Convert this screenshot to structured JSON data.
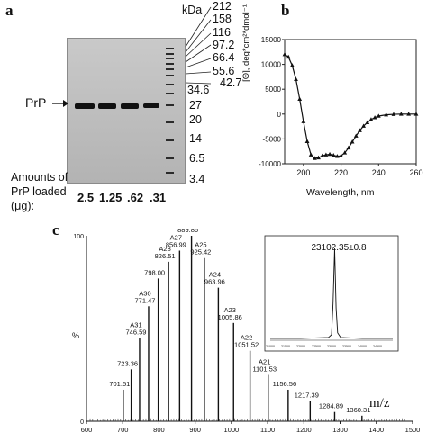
{
  "panel_a": {
    "letter": "a",
    "kda_label": "kDa",
    "upper_markers": [
      "212",
      "158",
      "116",
      "97.2",
      "66.4",
      "55.6",
      "42.7"
    ],
    "lower_markers": [
      "34.6",
      "27",
      "20",
      "14",
      "6.5",
      "3.4"
    ],
    "prp_label": "PrP",
    "amounts_label_line1": "Amounts of",
    "amounts_label_line2": "PrP loaded",
    "amounts_label_line3": "(μg):",
    "lane_amounts": [
      "2.5",
      "1.25",
      ".62",
      ".31"
    ]
  },
  "panel_b": {
    "letter": "b",
    "ylabel": "[Θ], deg*cm²*dmol⁻¹",
    "xlabel": "Wavelength, nm"
  },
  "panel_c": {
    "letter": "c",
    "ylabel": "%",
    "xlabel": "m/z",
    "inset_label": "23102.35±0.8"
  },
  "chart_data": [
    {
      "type": "line",
      "panel": "b",
      "title": "",
      "xlabel": "Wavelength, nm",
      "ylabel": "[Θ], deg*cm²*dmol⁻¹",
      "xlim": [
        190,
        260
      ],
      "ylim": [
        -10000,
        15000
      ],
      "xticks": [
        200,
        220,
        240,
        260
      ],
      "yticks": [
        15000,
        10000,
        5000,
        0,
        -5000,
        -10000
      ],
      "series": [
        {
          "x": [
            190,
            192,
            194,
            196,
            198,
            200,
            202,
            204,
            206,
            208,
            210,
            212,
            214,
            216,
            218,
            220,
            222,
            224,
            226,
            228,
            230,
            232,
            234,
            236,
            238,
            240,
            244,
            248,
            252,
            256,
            260
          ],
          "y": [
            12000,
            11500,
            9800,
            7000,
            3000,
            -1500,
            -5500,
            -8200,
            -8900,
            -8800,
            -8400,
            -8200,
            -8100,
            -8300,
            -8500,
            -8400,
            -7800,
            -6800,
            -5600,
            -4400,
            -3300,
            -2400,
            -1700,
            -1100,
            -700,
            -400,
            -150,
            -50,
            0,
            0,
            0
          ]
        }
      ]
    },
    {
      "type": "bar",
      "panel": "c",
      "title": "",
      "xlabel": "m/z",
      "ylabel": "%",
      "xlim": [
        600,
        1500
      ],
      "ylim": [
        0,
        100
      ],
      "xticks": [
        600,
        700,
        800,
        900,
        1000,
        1100,
        1200,
        1300,
        1400,
        1500
      ],
      "yticks": [
        0,
        100
      ],
      "peaks": [
        {
          "mz": 701.51,
          "intensity": 17,
          "label": "701.51"
        },
        {
          "mz": 723.36,
          "intensity": 28,
          "label": "723.36"
        },
        {
          "mz": 746.59,
          "intensity": 45,
          "label": "A31\n746.59"
        },
        {
          "mz": 771.47,
          "intensity": 62,
          "label": "A30\n771.47"
        },
        {
          "mz": 798.0,
          "intensity": 77,
          "label": "798.00"
        },
        {
          "mz": 826.51,
          "intensity": 86,
          "label": "A28\n826.51"
        },
        {
          "mz": 856.99,
          "intensity": 92,
          "label": "A27\n856.99"
        },
        {
          "mz": 889.86,
          "intensity": 100,
          "label": "A26\n889.86"
        },
        {
          "mz": 925.42,
          "intensity": 88,
          "label": "A25\n925.42"
        },
        {
          "mz": 963.96,
          "intensity": 72,
          "label": "A24\n963.96"
        },
        {
          "mz": 1005.86,
          "intensity": 53,
          "label": "A23\n1005.86"
        },
        {
          "mz": 1051.52,
          "intensity": 38,
          "label": "A22\n1051.52"
        },
        {
          "mz": 1101.53,
          "intensity": 25,
          "label": "A21\n1101.53"
        },
        {
          "mz": 1156.56,
          "intensity": 17,
          "label": "1156.56"
        },
        {
          "mz": 1217.39,
          "intensity": 11,
          "label": "1217.39"
        },
        {
          "mz": 1284.89,
          "intensity": 5,
          "label": "1284.89"
        },
        {
          "mz": 1360.31,
          "intensity": 3,
          "label": "1360.31"
        }
      ]
    },
    {
      "type": "line",
      "panel": "c-inset",
      "title": "",
      "label": "23102.35±0.8",
      "xlim": [
        21000,
        25000
      ],
      "ylim": [
        0,
        100
      ],
      "xticks": [
        "21000",
        "21500",
        "22000",
        "22500",
        "23000",
        "23500",
        "24000",
        "24500"
      ],
      "series": [
        {
          "x": [
            21000,
            22000,
            22900,
            23000,
            23050,
            23102,
            23150,
            23200,
            23300,
            24000,
            25000
          ],
          "y": [
            2,
            2,
            3,
            6,
            40,
            100,
            35,
            8,
            3,
            2,
            2
          ]
        }
      ]
    }
  ]
}
